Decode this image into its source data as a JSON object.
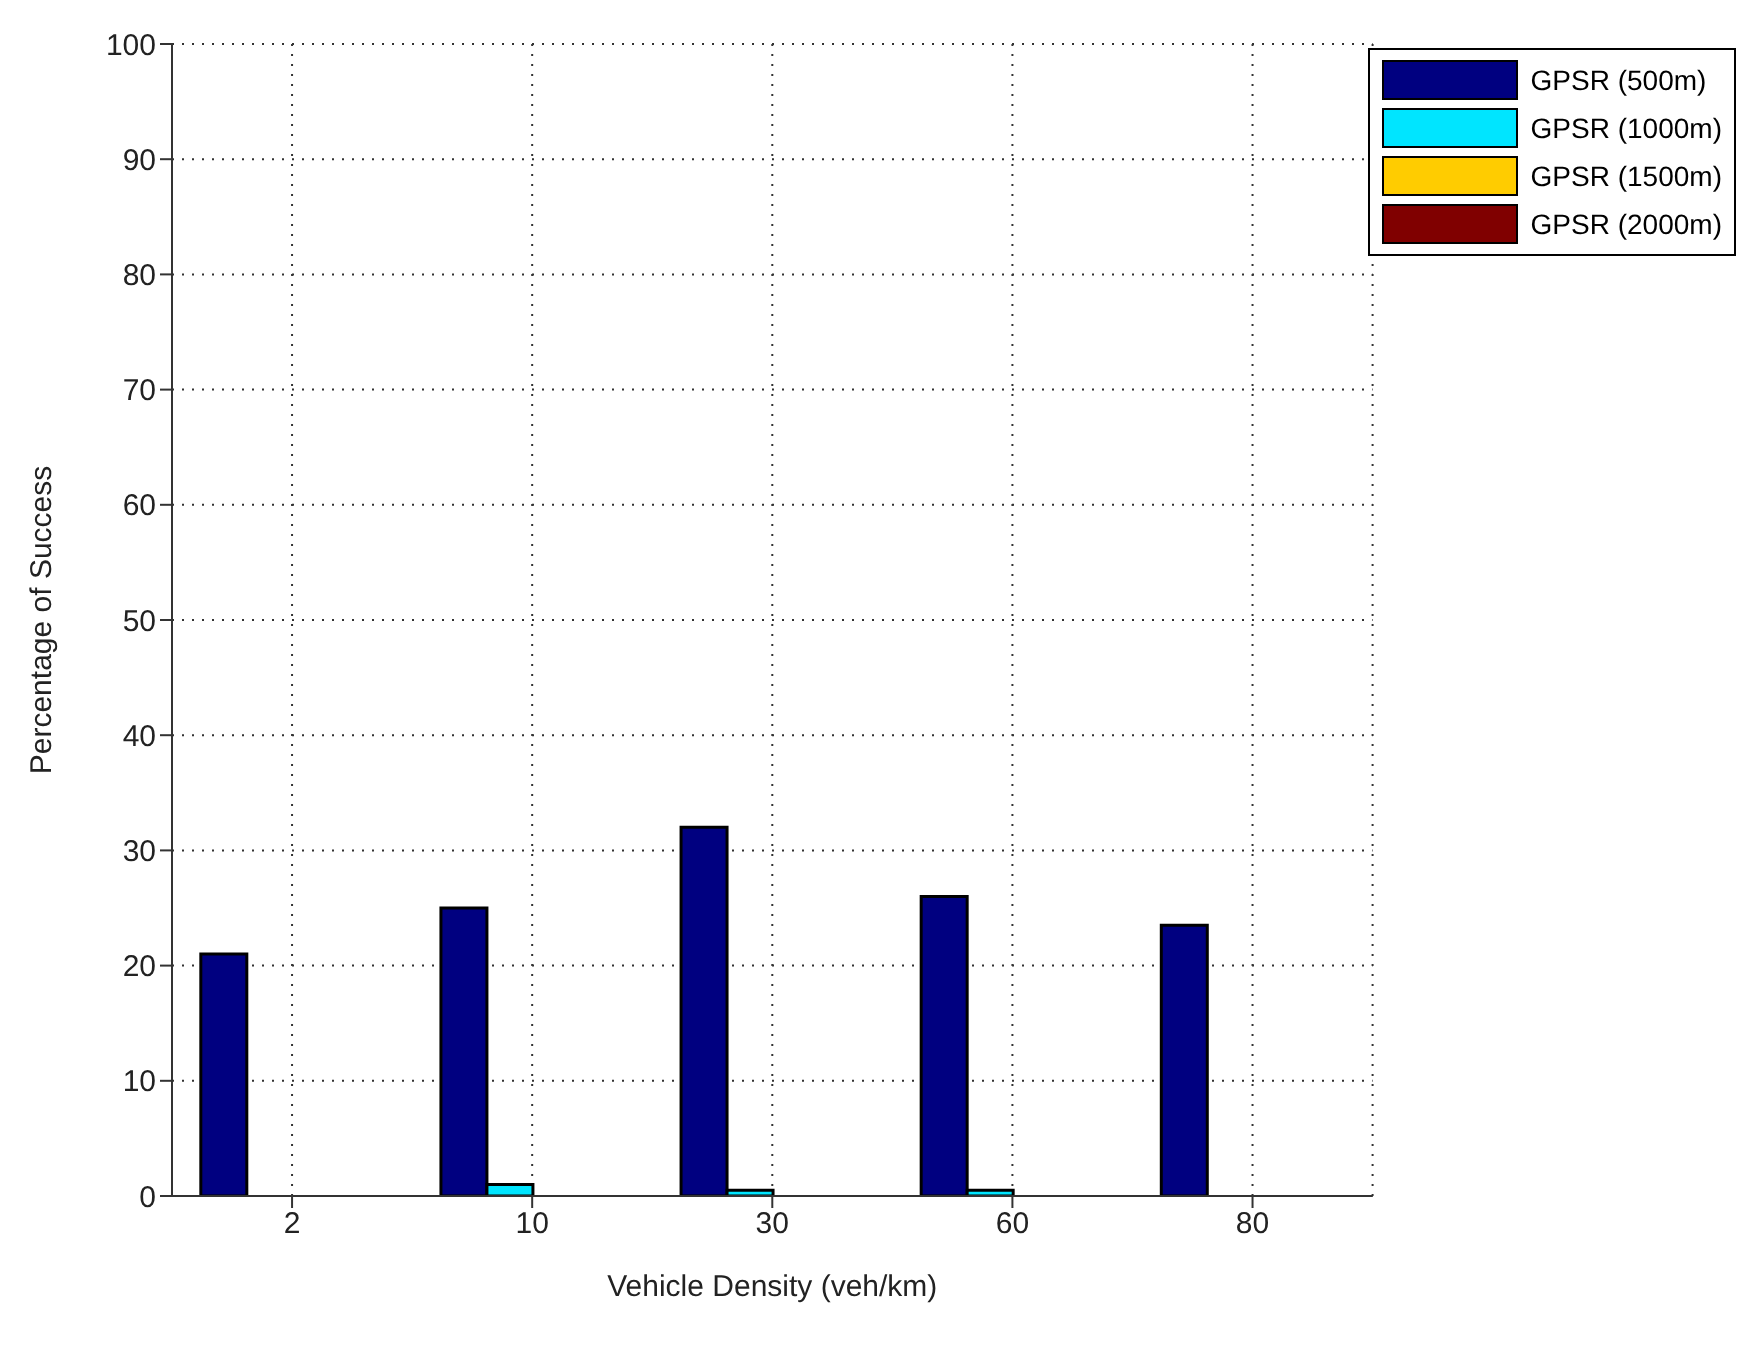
{
  "chart_data": {
    "type": "bar",
    "xlabel": "Vehicle Density (veh/km)",
    "ylabel": "Percentage of Success",
    "categories": [
      "2",
      "10",
      "30",
      "60",
      "80"
    ],
    "series": [
      {
        "name": "GPSR (500m)",
        "color": "#000080",
        "values": [
          21,
          25,
          32,
          26,
          23.5
        ]
      },
      {
        "name": "GPSR (1000m)",
        "color": "#00e5ff",
        "values": [
          0,
          1,
          0.5,
          0.5,
          0
        ]
      },
      {
        "name": "GPSR (1500m)",
        "color": "#ffcc00",
        "values": [
          0,
          0,
          0,
          0,
          0
        ]
      },
      {
        "name": "GPSR (2000m)",
        "color": "#800000",
        "values": [
          0,
          0,
          0,
          0,
          0
        ]
      }
    ],
    "ylim": [
      0,
      100
    ],
    "yticks": [
      0,
      10,
      20,
      30,
      40,
      50,
      60,
      70,
      80,
      90,
      100
    ],
    "grid": true,
    "legend": "top right"
  }
}
